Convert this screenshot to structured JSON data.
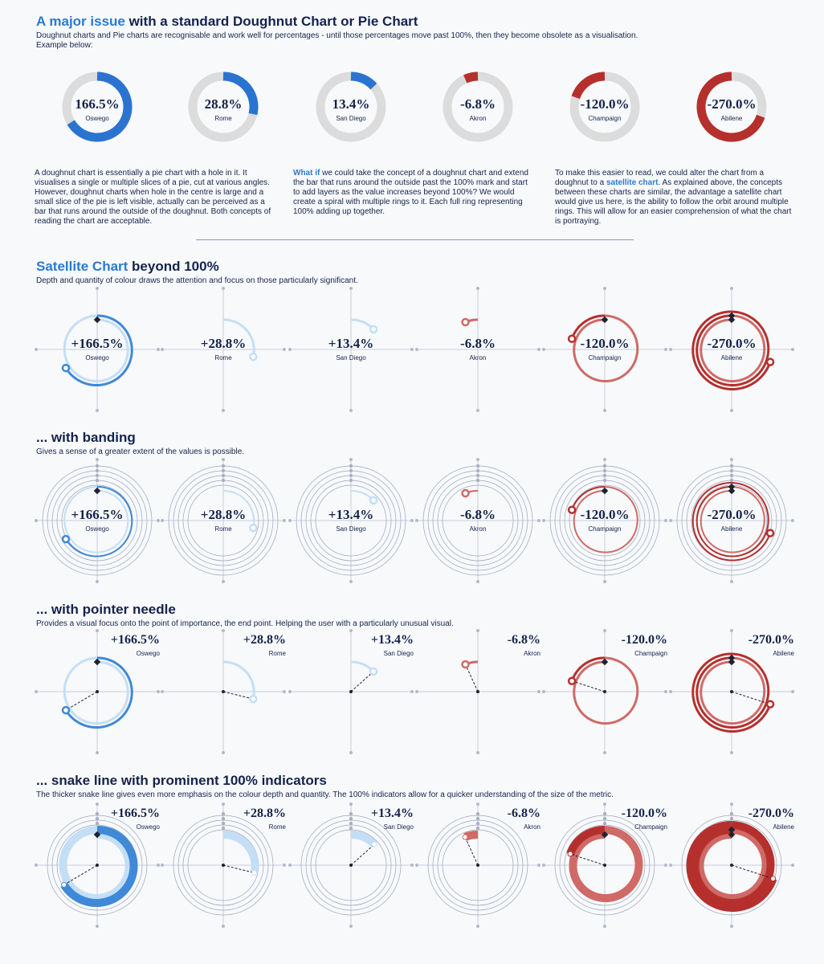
{
  "colors": {
    "blue_dark": "#3f89d8",
    "blue_light": "#c4def5",
    "red_dark": "#b5302d",
    "red_mid": "#cf6a66",
    "red_light": "#f7cfcd",
    "grey_ring": "#dcdcdc",
    "axis": "#c9cdd8",
    "band": "#9aa3bb"
  },
  "section1": {
    "title_accent": "A major issue",
    "title_rest": " with a standard Doughnut Chart or Pie Chart",
    "subtitle_line1": "Doughnut charts and Pie charts are recognisable and work well for percentages - until those percentages move past 100%, then they become obsolete as a visualisation.",
    "subtitle_line2": "Example below:"
  },
  "paragraphs": {
    "p1": "A doughnut chart is essentially a pie chart with a hole in it.  It visualises a single or multiple slices of a pie, cut at various angles. However, doughnut charts when hole in the centre is large and a small slice of the pie is left visible, actually can be perceived as a bar that runs around the outside of the doughnut.  Both concepts of reading the chart are acceptable.",
    "p2_highlight": "What if",
    "p2_rest": " we could take the concept of a doughnut chart and extend the bar that runs around the outside past the 100% mark and start to add layers as the value increases beyond 100%?  We would create a spiral with multiple rings to it.  Each full ring representing 100% adding up together.",
    "p3_start": "To make this easier to read, we could alter the chart from a doughnut to a ",
    "p3_highlight": "satellite chart",
    "p3_rest": ".  As explained above, the concepts between these charts are similar, the advantage a satellite chart would give us here, is the ability to follow the orbit around multiple rings.  This will allow for an easier comprehension of what the chart is portraying."
  },
  "section2": {
    "title_accent": "Satellite Chart",
    "title_rest": " beyond 100%",
    "subtitle": "Depth and quantity of colour draws the attention and focus on those particularly significant."
  },
  "section3": {
    "title": "... with banding",
    "subtitle": "Gives a sense of a greater extent of the values is possible."
  },
  "section4": {
    "title": "... with pointer needle",
    "subtitle": "Provides a visual focus onto the point of importance, the end point.  Helping the user with a particularly unusual visual."
  },
  "section5": {
    "title": "... snake line with prominent 100% indicators",
    "subtitle": "The thicker snake line gives even more emphasis on the colour depth and quantity.  The 100% indicators allow for a quicker understanding of the size of the metric."
  },
  "chart_data": [
    {
      "type": "doughnut",
      "title": "A major issue with a standard Doughnut Chart or Pie Chart",
      "categories": [
        "Oswego",
        "Rome",
        "San Diego",
        "Akron",
        "Champaign",
        "Abilene"
      ],
      "values": [
        166.5,
        28.8,
        13.4,
        -6.8,
        -120.0,
        -270.0
      ],
      "labels": [
        "166.5%",
        "28.8%",
        "13.4%",
        "-6.8%",
        "-120.0%",
        "-270.0%"
      ]
    },
    {
      "type": "satellite",
      "title": "Satellite Chart beyond 100%",
      "categories": [
        "Oswego",
        "Rome",
        "San Diego",
        "Akron",
        "Champaign",
        "Abilene"
      ],
      "values": [
        166.5,
        28.8,
        13.4,
        -6.8,
        -120.0,
        -270.0
      ],
      "labels": [
        "+166.5%",
        "+28.8%",
        "+13.4%",
        "-6.8%",
        "-120.0%",
        "-270.0%"
      ]
    },
    {
      "type": "satellite-banded",
      "title": "... with banding",
      "categories": [
        "Oswego",
        "Rome",
        "San Diego",
        "Akron",
        "Champaign",
        "Abilene"
      ],
      "values": [
        166.5,
        28.8,
        13.4,
        -6.8,
        -120.0,
        -270.0
      ],
      "labels": [
        "+166.5%",
        "+28.8%",
        "+13.4%",
        "-6.8%",
        "-120.0%",
        "-270.0%"
      ]
    },
    {
      "type": "satellite-needle",
      "title": "... with pointer needle",
      "categories": [
        "Oswego",
        "Rome",
        "San Diego",
        "Akron",
        "Champaign",
        "Abilene"
      ],
      "values": [
        166.5,
        28.8,
        13.4,
        -6.8,
        -120.0,
        -270.0
      ],
      "labels": [
        "+166.5%",
        "+28.8%",
        "+13.4%",
        "-6.8%",
        "-120.0%",
        "-270.0%"
      ]
    },
    {
      "type": "satellite-snake",
      "title": "... snake line with prominent 100% indicators",
      "categories": [
        "Oswego",
        "Rome",
        "San Diego",
        "Akron",
        "Champaign",
        "Abilene"
      ],
      "values": [
        166.5,
        28.8,
        13.4,
        -6.8,
        -120.0,
        -270.0
      ],
      "labels": [
        "+166.5%",
        "+28.8%",
        "+13.4%",
        "-6.8%",
        "-120.0%",
        "-270.0%"
      ]
    }
  ]
}
